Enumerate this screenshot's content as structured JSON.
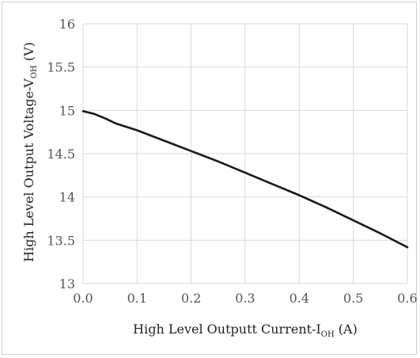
{
  "chart_data": {
    "type": "line",
    "title": "",
    "xlabel_main": "High Level Outputt Current-I",
    "xlabel_sub": "OH",
    "xlabel_unit": " (A)",
    "ylabel_main": "High Level Output Voltage-V",
    "ylabel_sub": "OH",
    "ylabel_unit": " (V)",
    "xlim": [
      0,
      0.6
    ],
    "ylim": [
      13,
      16
    ],
    "x_ticks": [
      "0.0",
      "0.1",
      "0.2",
      "0.3",
      "0.4",
      "0.5",
      "0.6"
    ],
    "y_ticks": [
      "13",
      "13.5",
      "14",
      "14.5",
      "15",
      "15.5",
      "16"
    ],
    "grid": true,
    "legend": "none",
    "series": [
      {
        "color": "#1a1a1a",
        "x": [
          0.0,
          0.02,
          0.04,
          0.06,
          0.08,
          0.1,
          0.15,
          0.2,
          0.25,
          0.3,
          0.35,
          0.4,
          0.45,
          0.5,
          0.55,
          0.6
        ],
        "y": [
          14.99,
          14.96,
          14.91,
          14.85,
          14.81,
          14.77,
          14.65,
          14.53,
          14.41,
          14.28,
          14.15,
          14.02,
          13.88,
          13.73,
          13.58,
          13.42
        ]
      }
    ]
  }
}
